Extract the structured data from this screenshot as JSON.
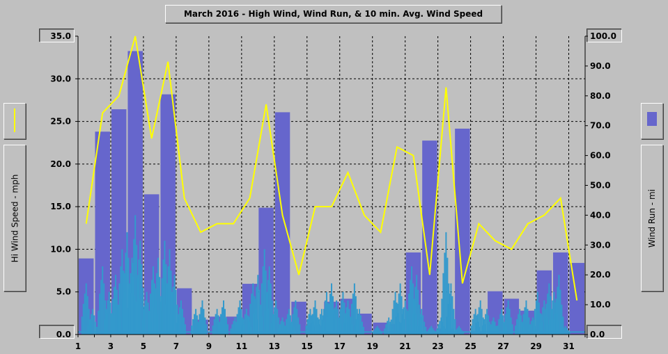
{
  "chart_data": {
    "type": "bar",
    "title": "March 2016 - High Wind, Wind Run, & 10 min. Avg. Wind Speed",
    "ylabel_left": "Hi Wind Speed - mph",
    "ylabel_right": "Wind Run - mi",
    "x_ticks": [
      "1",
      "3",
      "5",
      "7",
      "9",
      "11",
      "13",
      "15",
      "17",
      "19",
      "21",
      "23",
      "25",
      "27",
      "29",
      "31"
    ],
    "left_ticks": [
      "35.0",
      "30.0",
      "25.0",
      "20.0",
      "15.0",
      "10.0",
      "5.0",
      "0.0"
    ],
    "right_ticks": [
      "100.0",
      "90.0",
      "80.0",
      "70.0",
      "60.0",
      "50.0",
      "40.0",
      "30.0",
      "20.0",
      "10.0",
      "0.0"
    ],
    "ylim_left": [
      0,
      35
    ],
    "ylim_right": [
      0,
      100
    ],
    "xlim": [
      1,
      32
    ],
    "grid": true,
    "series": [
      {
        "role": "wind_run_bars",
        "axis": "right",
        "color": "#6666cc",
        "days": [
          1,
          2,
          3,
          4,
          5,
          6,
          7,
          8,
          9,
          10,
          11,
          12,
          13,
          14,
          15,
          16,
          17,
          18,
          19,
          20,
          21,
          22,
          23,
          24,
          25,
          26,
          27,
          28,
          29,
          30,
          31
        ],
        "values": [
          25.5,
          68,
          75.5,
          95,
          47,
          80.5,
          15.5,
          5,
          6,
          6,
          17,
          42.5,
          74.5,
          11,
          3,
          11,
          12,
          7,
          4,
          3.5,
          27.5,
          65,
          2,
          69,
          1,
          14.5,
          12,
          8,
          21.5,
          27.5,
          24
        ]
      },
      {
        "role": "high_wind_line",
        "axis": "left",
        "color": "#ffff00",
        "x": [
          1.5,
          2.5,
          3.5,
          4.5,
          5.5,
          6.5,
          7.5,
          8.5,
          9.5,
          10.5,
          11.5,
          12.5,
          13.5,
          14.5,
          15.5,
          16.5,
          17.5,
          18.5,
          19.5,
          20.5,
          21.5,
          22.5,
          23.5,
          24.5,
          25.5,
          26.5,
          27.5,
          28.5,
          29.5,
          30.5,
          31.5
        ],
        "values": [
          13,
          26,
          28,
          35,
          23,
          32,
          16,
          12,
          13,
          13,
          16,
          27,
          14,
          7,
          15,
          15,
          19,
          14,
          12,
          22,
          21,
          7,
          29,
          6,
          13,
          11,
          10,
          13,
          14,
          16,
          4
        ]
      },
      {
        "role": "avg_wind_spikes",
        "axis": "left",
        "color": "#3399cc",
        "peaks": [
          [
            1.5,
            6
          ],
          [
            1.9,
            3
          ],
          [
            2.5,
            8
          ],
          [
            2.9,
            5
          ],
          [
            3.3,
            7
          ],
          [
            3.7,
            10
          ],
          [
            4.0,
            12
          ],
          [
            4.3,
            9
          ],
          [
            4.5,
            14
          ],
          [
            4.8,
            11
          ],
          [
            5.2,
            5
          ],
          [
            5.6,
            8
          ],
          [
            5.9,
            9
          ],
          [
            6.3,
            11
          ],
          [
            6.6,
            10
          ],
          [
            6.9,
            7
          ],
          [
            7.3,
            4
          ],
          [
            8.2,
            3
          ],
          [
            8.6,
            4
          ],
          [
            9.5,
            3
          ],
          [
            9.9,
            4
          ],
          [
            10.6,
            2
          ],
          [
            10.9,
            4
          ],
          [
            11.3,
            3
          ],
          [
            11.7,
            6
          ],
          [
            12.0,
            7
          ],
          [
            12.4,
            10
          ],
          [
            12.7,
            8
          ],
          [
            13.1,
            4
          ],
          [
            13.5,
            2
          ],
          [
            13.9,
            3
          ],
          [
            14.3,
            4
          ],
          [
            15.2,
            3
          ],
          [
            15.5,
            4
          ],
          [
            15.9,
            3
          ],
          [
            16.2,
            5
          ],
          [
            16.5,
            6
          ],
          [
            16.8,
            4
          ],
          [
            17.2,
            5
          ],
          [
            17.5,
            4
          ],
          [
            17.9,
            6
          ],
          [
            18.2,
            3
          ],
          [
            19.3,
            1
          ],
          [
            20.0,
            2
          ],
          [
            20.4,
            5
          ],
          [
            20.7,
            6
          ],
          [
            21.0,
            4
          ],
          [
            21.4,
            8
          ],
          [
            21.7,
            7
          ],
          [
            22.0,
            3
          ],
          [
            22.6,
            1
          ],
          [
            23.2,
            2
          ],
          [
            23.5,
            12
          ],
          [
            23.8,
            6
          ],
          [
            24.3,
            1
          ],
          [
            25.3,
            3
          ],
          [
            25.6,
            4
          ],
          [
            26.0,
            3
          ],
          [
            26.4,
            2
          ],
          [
            26.9,
            3
          ],
          [
            27.3,
            4
          ],
          [
            28.0,
            3
          ],
          [
            28.4,
            4
          ],
          [
            28.8,
            2
          ],
          [
            29.1,
            5
          ],
          [
            29.5,
            4
          ],
          [
            29.8,
            6
          ],
          [
            30.1,
            5
          ],
          [
            30.4,
            7
          ],
          [
            30.8,
            1
          ]
        ]
      }
    ]
  }
}
